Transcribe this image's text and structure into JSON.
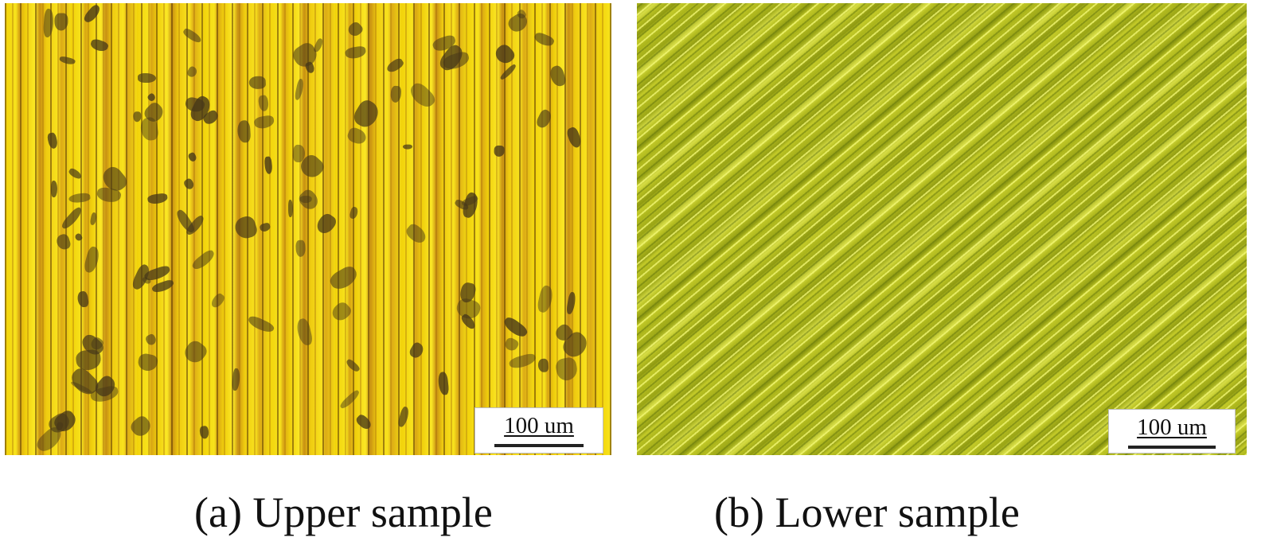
{
  "figure": {
    "panels": [
      {
        "id": "a",
        "caption": "(a) Upper sample",
        "scale_bar_label": "100 um",
        "image_description_colors": {
          "base": "#f2d20a",
          "striation": "#8a5a08",
          "debris": "#463719"
        }
      },
      {
        "id": "b",
        "caption": "(b) Lower sample",
        "scale_bar_label": "100 um",
        "image_description_colors": {
          "base": "#a9b31a",
          "highlight": "#e8ee70",
          "shadow": "#6f7a0c"
        }
      }
    ]
  }
}
